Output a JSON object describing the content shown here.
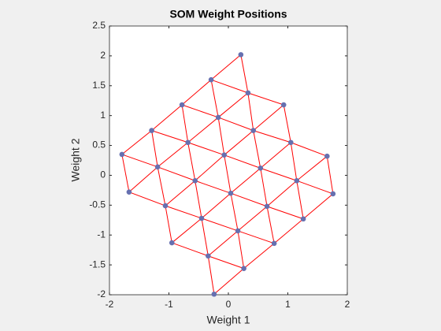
{
  "chart_data": {
    "type": "scatter",
    "title": "SOM Weight Positions",
    "x_label": "Weight 1",
    "y_label": "Weight 2",
    "x": [
      -1.79,
      -1.29,
      -0.78,
      -0.29,
      0.21,
      -1.67,
      -1.19,
      -0.68,
      -0.17,
      0.33,
      -1.06,
      -0.56,
      -0.07,
      0.42,
      0.93,
      -0.95,
      -0.45,
      0.04,
      0.54,
      1.05,
      -0.34,
      0.16,
      0.65,
      1.15,
      1.66,
      -0.24,
      0.26,
      0.77,
      1.26,
      1.76
    ],
    "y": [
      0.35,
      0.75,
      1.18,
      1.6,
      2.02,
      -0.28,
      0.14,
      0.55,
      0.97,
      1.38,
      -0.51,
      -0.09,
      0.34,
      0.75,
      1.18,
      -1.13,
      -0.72,
      -0.3,
      0.12,
      0.55,
      -1.35,
      -0.93,
      -0.52,
      -0.09,
      0.32,
      -1.99,
      -1.56,
      -1.14,
      -0.73,
      -0.31
    ],
    "color": "#6670b0",
    "link_color": "#ff0000",
    "xlim": [
      -2,
      2
    ],
    "xticks": [
      -2,
      -1,
      0,
      1,
      2
    ],
    "ylim": [
      -2,
      2.5
    ],
    "yticks": [
      -2,
      -1.5,
      -1,
      -0.5,
      0,
      0.5,
      1,
      1.5,
      2,
      2.5
    ],
    "grid": false
  }
}
